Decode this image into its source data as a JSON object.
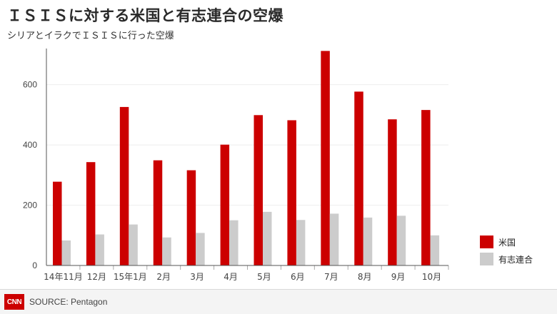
{
  "title": "ＩＳＩＳに対する米国と有志連合の空爆",
  "subtitle": "シリアとイラクでＩＳＩＳに行った空爆",
  "source": "SOURCE: Pentagon",
  "logo_text": "CNN",
  "colors": {
    "us": "#cc0000",
    "coalition": "#cccccc",
    "axis": "#555555",
    "grid": "#eeeeee"
  },
  "chart_data": {
    "type": "bar",
    "categories": [
      "14年11月",
      "12月",
      "15年1月",
      "2月",
      "3月",
      "4月",
      "5月",
      "6月",
      "7月",
      "8月",
      "9月",
      "10月"
    ],
    "series": [
      {
        "name": "米国",
        "values": [
          278,
          343,
          526,
          349,
          316,
          401,
          499,
          482,
          712,
          577,
          485,
          516
        ]
      },
      {
        "name": "有志連合",
        "values": [
          83,
          103,
          136,
          93,
          108,
          150,
          178,
          151,
          172,
          159,
          165,
          100
        ]
      }
    ],
    "y_ticks": [
      0,
      200,
      400,
      600
    ],
    "ylim": [
      0,
      720
    ],
    "legend_position": "right"
  }
}
